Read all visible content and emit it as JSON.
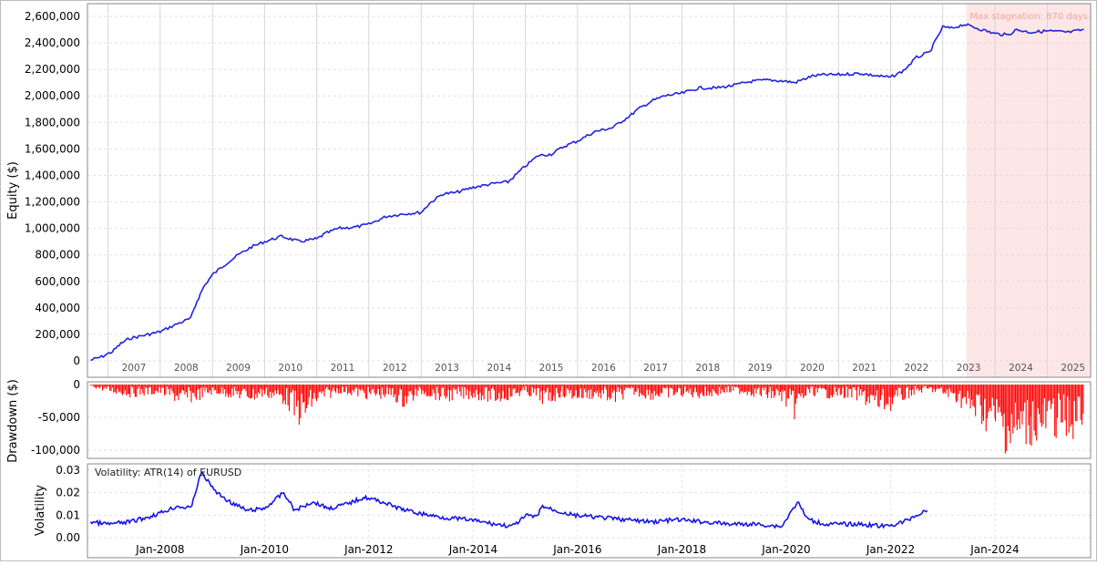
{
  "chart_data": [
    {
      "type": "line",
      "title": "",
      "ylabel": "Equity ($)",
      "ylim": [
        0,
        2600000
      ],
      "yticks": [
        0,
        200000,
        400000,
        600000,
        800000,
        1000000,
        1200000,
        1400000,
        1600000,
        1800000,
        2000000,
        2200000,
        2400000,
        2600000
      ],
      "ytick_labels": [
        "0",
        "200,000",
        "400,000",
        "600,000",
        "800,000",
        "1,000,000",
        "1,200,000",
        "1,400,000",
        "1,600,000",
        "1,800,000",
        "2,000,000",
        "2,200,000",
        "2,400,000",
        "2,600,000"
      ],
      "year_labels": [
        "2007",
        "2008",
        "2009",
        "2010",
        "2011",
        "2012",
        "2013",
        "2014",
        "2015",
        "2016",
        "2017",
        "2018",
        "2019",
        "2020",
        "2021",
        "2022",
        "2023",
        "2024",
        "2025"
      ],
      "annotation": "Max stagnation: 870 days",
      "stagnation_start": "2023-06-15",
      "grid": true,
      "line_color": "#2222dd",
      "shade_color": "#fde6e6",
      "series": [
        {
          "x": [
            "2006-09-01",
            "2006-11-15",
            "2007-02-01",
            "2007-04-01",
            "2007-06-01",
            "2007-09-01",
            "2008-01-01",
            "2008-05-01",
            "2008-08-01",
            "2008-09-15",
            "2008-11-01",
            "2009-01-01",
            "2009-04-01",
            "2009-07-01",
            "2009-10-01",
            "2010-01-01",
            "2010-05-01",
            "2010-09-01",
            "2011-01-01",
            "2011-03-01",
            "2011-06-01",
            "2011-10-01",
            "2012-01-01",
            "2012-05-01",
            "2012-09-01",
            "2013-01-01",
            "2013-03-01",
            "2013-06-01",
            "2013-09-01",
            "2014-01-01",
            "2014-06-01",
            "2014-09-01",
            "2015-01-01",
            "2015-04-01",
            "2015-07-01",
            "2015-10-01",
            "2016-01-01",
            "2016-05-01",
            "2016-09-01",
            "2017-01-01",
            "2017-03-01",
            "2017-06-01",
            "2017-09-01",
            "2018-01-01",
            "2018-05-01",
            "2018-09-01",
            "2019-01-01",
            "2019-05-01",
            "2019-09-01",
            "2020-01-01",
            "2020-03-01",
            "2020-07-01",
            "2020-10-01",
            "2021-01-01",
            "2021-06-01",
            "2021-10-01",
            "2022-01-01",
            "2022-04-01",
            "2022-07-01",
            "2022-10-01",
            "2023-01-01",
            "2023-03-01",
            "2023-06-01",
            "2023-10-01",
            "2024-01-01",
            "2024-04-01",
            "2024-06-01",
            "2024-09-01",
            "2025-01-01",
            "2025-06-01",
            "2025-09-15"
          ],
          "y": [
            5000,
            30000,
            70000,
            130000,
            170000,
            190000,
            220000,
            280000,
            320000,
            450000,
            560000,
            650000,
            730000,
            800000,
            860000,
            900000,
            940000,
            900000,
            920000,
            960000,
            1000000,
            1010000,
            1030000,
            1090000,
            1110000,
            1120000,
            1190000,
            1260000,
            1270000,
            1310000,
            1340000,
            1350000,
            1470000,
            1550000,
            1560000,
            1620000,
            1660000,
            1730000,
            1760000,
            1850000,
            1900000,
            1960000,
            2000000,
            2020000,
            2060000,
            2060000,
            2080000,
            2110000,
            2120000,
            2110000,
            2100000,
            2150000,
            2160000,
            2160000,
            2170000,
            2150000,
            2140000,
            2190000,
            2290000,
            2330000,
            2520000,
            2510000,
            2540000,
            2500000,
            2470000,
            2460000,
            2500000,
            2480000,
            2490000,
            2480000,
            2500000
          ]
        }
      ]
    },
    {
      "type": "bar",
      "title": "",
      "ylabel": "Drawdown ($)",
      "ylim": [
        -110000,
        0
      ],
      "yticks": [
        0,
        -50000,
        -100000
      ],
      "ytick_labels": [
        "0",
        "-50,000",
        "-100,000"
      ],
      "bar_color": "#ff0000",
      "series": [
        {
          "x": [
            "2006-09-01",
            "2007-01-01",
            "2007-06-01",
            "2008-01-01",
            "2008-06-01",
            "2008-10-01",
            "2009-01-01",
            "2009-06-01",
            "2009-10-01",
            "2010-01-01",
            "2010-06-01",
            "2010-08-01",
            "2010-10-01",
            "2010-12-01",
            "2011-06-01",
            "2012-01-01",
            "2012-06-01",
            "2012-09-01",
            "2013-01-01",
            "2013-06-01",
            "2014-01-01",
            "2014-06-01",
            "2015-01-01",
            "2015-06-01",
            "2015-09-01",
            "2016-01-01",
            "2016-06-01",
            "2016-09-01",
            "2017-01-01",
            "2017-06-01",
            "2018-01-01",
            "2018-06-01",
            "2019-01-01",
            "2019-06-01",
            "2019-12-01",
            "2020-02-15",
            "2020-06-01",
            "2020-10-01",
            "2021-01-01",
            "2021-06-01",
            "2021-10-01",
            "2022-01-01",
            "2022-06-01",
            "2022-10-01",
            "2023-01-01",
            "2023-04-01",
            "2023-07-01",
            "2023-10-01",
            "2024-01-01",
            "2024-03-01",
            "2024-06-01",
            "2024-09-01",
            "2024-12-01",
            "2025-03-01",
            "2025-06-01",
            "2025-09-15"
          ],
          "y": [
            -3000,
            -12000,
            -18000,
            -15000,
            -30000,
            -22000,
            -14000,
            -20000,
            -25000,
            -18000,
            -30000,
            -55000,
            -62000,
            -35000,
            -12000,
            -22000,
            -20000,
            -35000,
            -15000,
            -25000,
            -20000,
            -28000,
            -15000,
            -32000,
            -18000,
            -24000,
            -20000,
            -30000,
            -15000,
            -22000,
            -18000,
            -20000,
            -12000,
            -18000,
            -25000,
            -52000,
            -15000,
            -20000,
            -18000,
            -25000,
            -42000,
            -38000,
            -15000,
            -10000,
            -18000,
            -25000,
            -45000,
            -60000,
            -80000,
            -95000,
            -108000,
            -85000,
            -90000,
            -75000,
            -88000,
            -60000
          ]
        }
      ]
    },
    {
      "type": "line",
      "title": "Volatility: ATR(14) of EURUSD",
      "ylabel": "Volatility",
      "ylim": [
        0,
        0.03
      ],
      "yticks": [
        0,
        0.01,
        0.02,
        0.03
      ],
      "ytick_labels": [
        "0.00",
        "0.01",
        "0.02",
        "0.03"
      ],
      "xtick_labels": [
        "Jan-2008",
        "Jan-2010",
        "Jan-2012",
        "Jan-2014",
        "Jan-2016",
        "Jan-2018",
        "Jan-2020",
        "Jan-2022",
        "Jan-2024"
      ],
      "line_color": "#1515e6",
      "series": [
        {
          "x": [
            "2006-09-01",
            "2007-01-01",
            "2007-06-01",
            "2007-10-01",
            "2008-01-01",
            "2008-05-01",
            "2008-08-01",
            "2008-10-15",
            "2008-12-01",
            "2009-02-01",
            "2009-05-01",
            "2009-09-01",
            "2010-01-01",
            "2010-05-15",
            "2010-08-01",
            "2010-12-01",
            "2011-04-01",
            "2011-08-01",
            "2011-12-01",
            "2012-04-01",
            "2012-08-01",
            "2012-12-01",
            "2013-06-01",
            "2013-12-01",
            "2014-06-01",
            "2014-10-01",
            "2015-01-15",
            "2015-03-15",
            "2015-05-01",
            "2015-08-01",
            "2015-12-01",
            "2016-06-01",
            "2016-12-01",
            "2017-06-01",
            "2017-12-01",
            "2018-06-01",
            "2018-12-01",
            "2019-06-01",
            "2019-12-01",
            "2020-03-20",
            "2020-06-01",
            "2020-10-01",
            "2021-06-01",
            "2021-12-01",
            "2022-04-01",
            "2022-07-01",
            "2022-09-15"
          ],
          "y": [
            0.007,
            0.006,
            0.007,
            0.009,
            0.011,
            0.014,
            0.013,
            0.029,
            0.025,
            0.02,
            0.016,
            0.012,
            0.013,
            0.02,
            0.012,
            0.016,
            0.013,
            0.015,
            0.018,
            0.016,
            0.013,
            0.011,
            0.009,
            0.008,
            0.006,
            0.005,
            0.01,
            0.009,
            0.014,
            0.012,
            0.01,
            0.009,
            0.008,
            0.007,
            0.008,
            0.007,
            0.006,
            0.006,
            0.005,
            0.016,
            0.008,
            0.006,
            0.006,
            0.005,
            0.007,
            0.01,
            0.012
          ]
        }
      ]
    }
  ]
}
